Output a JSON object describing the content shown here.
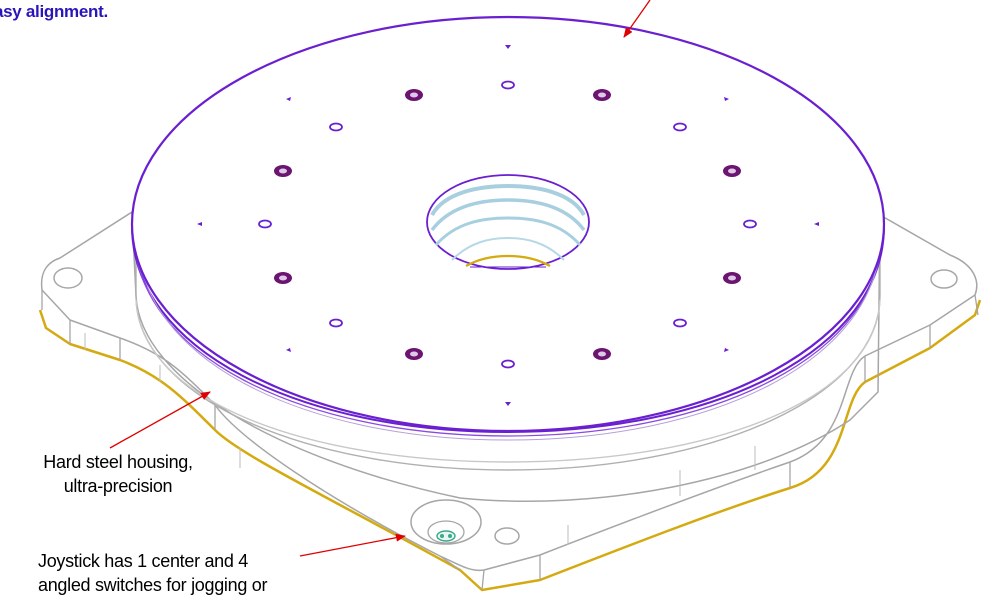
{
  "annotations": {
    "alignment_text": "asy alignment.",
    "housing_line1": "Hard steel housing,",
    "housing_line2": "ultra-precision",
    "joystick_line1": "Joystick has 1 center and 4",
    "joystick_line2": "angled switches for jogging or"
  },
  "colors": {
    "table_outline": "#6a1fd0",
    "housing_outline": "#a6a6a6",
    "base_bottom_edge": "#d4aa10",
    "counterbore_hole": "#6b1570",
    "bore_rings": "#a8cfe0",
    "leader_arrow": "#e00000",
    "alignment_text": "#2a16b8"
  }
}
